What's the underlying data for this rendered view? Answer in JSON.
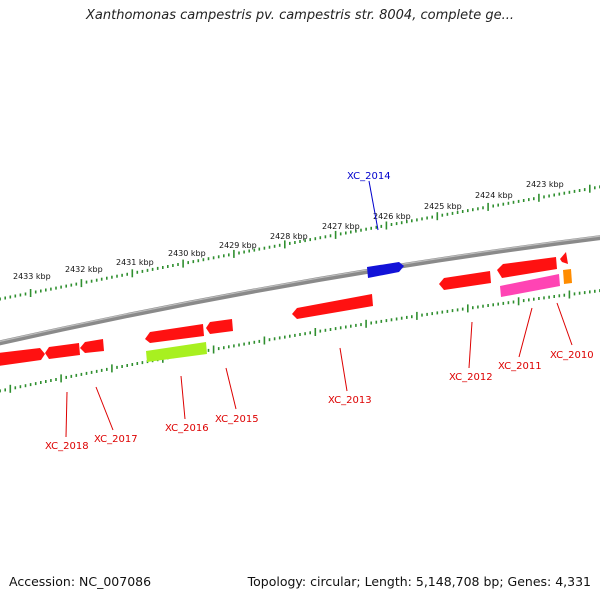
{
  "title": "Xanthomonas campestris pv. campestris str. 8004, complete ge...",
  "footer": {
    "accession": "Accession: NC_007086",
    "summary": "Topology: circular; Length: 5,148,708 bp; Genes: 4,331"
  },
  "colors": {
    "backbone": "#8a8a8a",
    "ticks": "#2f8f2f",
    "kbp_label": "#111111",
    "gene_red": "#ff1111",
    "gene_blue": "#1212d8",
    "gene_lime": "#a8f020",
    "gene_pink": "#ff44b4",
    "gene_orange": "#ff8c00",
    "label_red": "#dd0000",
    "label_blue": "#0000cc"
  },
  "kbp_labels": [
    "2423 kbp",
    "2424 kbp",
    "2425 kbp",
    "2426 kbp",
    "2427 kbp",
    "2428 kbp",
    "2429 kbp",
    "2430 kbp",
    "2431 kbp",
    "2432 kbp",
    "2433 kbp"
  ],
  "genes": [
    {
      "name": "XC_2010",
      "color": "gene_orange"
    },
    {
      "name": "XC_2011",
      "color": "gene_pink"
    },
    {
      "name": "XC_2012",
      "color": "gene_red"
    },
    {
      "name": "XC_2013",
      "color": "gene_red"
    },
    {
      "name": "XC_2014",
      "color": "gene_blue"
    },
    {
      "name": "XC_2015",
      "color": "gene_red"
    },
    {
      "name": "XC_2016",
      "color": "gene_lime"
    },
    {
      "name": "XC_2017",
      "color": "gene_red"
    },
    {
      "name": "XC_2018",
      "color": "gene_red"
    }
  ]
}
